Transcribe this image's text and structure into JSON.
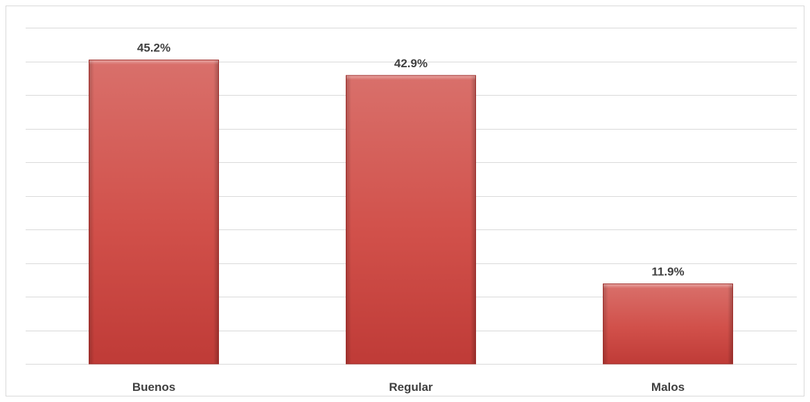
{
  "chart_data": {
    "type": "bar",
    "categories": [
      "Buenos",
      "Regular",
      "Malos"
    ],
    "values": [
      45.2,
      42.9,
      11.9
    ],
    "data_labels": [
      "45.2%",
      "42.9%",
      "11.9%"
    ],
    "title": "",
    "xlabel": "",
    "ylabel": "",
    "ylim": [
      0,
      50
    ],
    "grid": true,
    "legend": "none",
    "colors": {
      "bar_light": "#d9706b",
      "bar_mid": "#d1504a",
      "bar_dark": "#bf3b37",
      "bar_edge": "#9e2a27",
      "gridline": "#d9d9d9",
      "text": "#404040"
    }
  }
}
